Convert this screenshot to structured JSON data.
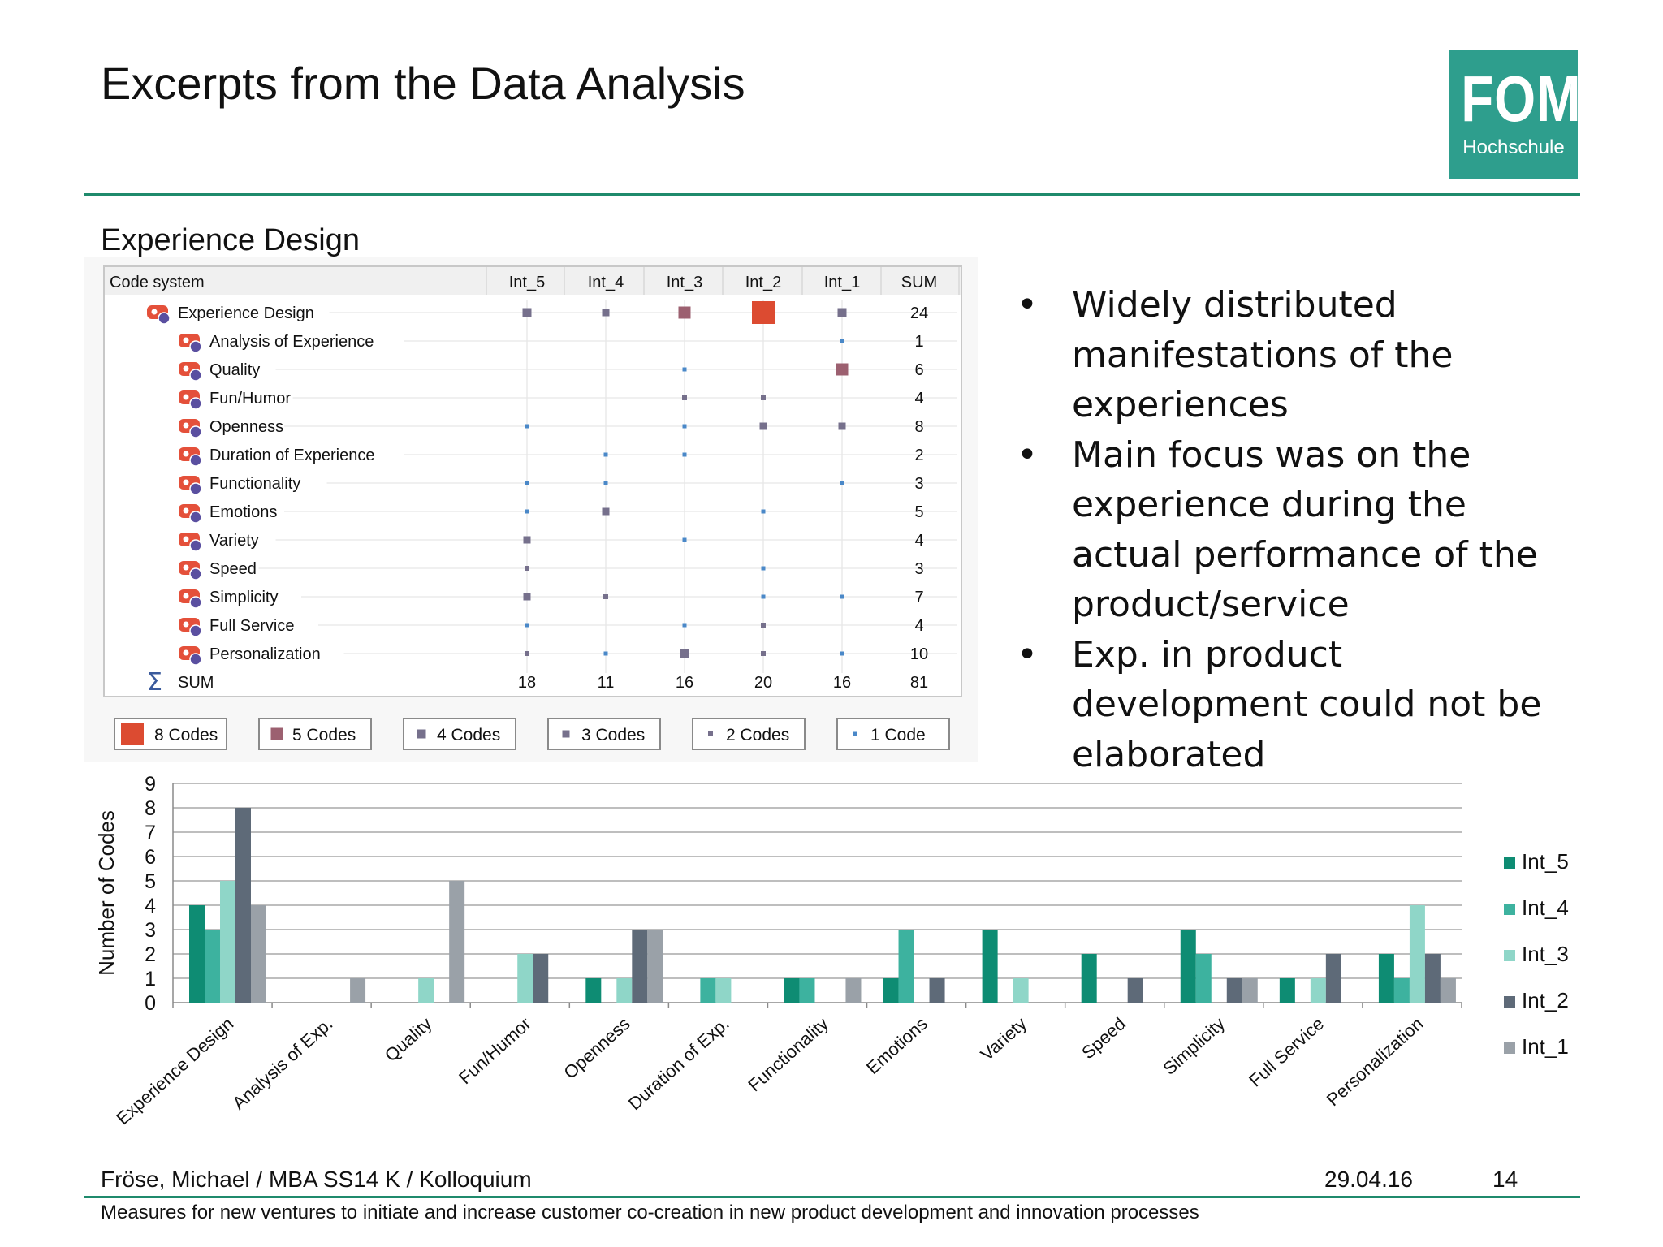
{
  "header": {
    "title": "Excerpts from the Data Analysis"
  },
  "logo": {
    "main": "FOM",
    "sub": "Hochschule"
  },
  "section": {
    "title": "Experience Design"
  },
  "code_table": {
    "header": "Code system",
    "columns": [
      "Int_5",
      "Int_4",
      "Int_3",
      "Int_2",
      "Int_1",
      "SUM"
    ],
    "rows": [
      {
        "label": "Experience Design",
        "level": 0,
        "values": [
          4,
          3,
          5,
          8,
          4
        ],
        "sum": "24"
      },
      {
        "label": "Analysis of Experience",
        "level": 1,
        "values": [
          0,
          0,
          0,
          0,
          1
        ],
        "sum": "1"
      },
      {
        "label": "Quality",
        "level": 1,
        "values": [
          0,
          0,
          1,
          0,
          5
        ],
        "sum": "6"
      },
      {
        "label": "Fun/Humor",
        "level": 1,
        "values": [
          0,
          0,
          2,
          2,
          0
        ],
        "sum": "4"
      },
      {
        "label": "Openness",
        "level": 1,
        "values": [
          1,
          0,
          1,
          3,
          3
        ],
        "sum": "8"
      },
      {
        "label": "Duration of Experience",
        "level": 1,
        "values": [
          0,
          1,
          1,
          0,
          0
        ],
        "sum": "2"
      },
      {
        "label": "Functionality",
        "level": 1,
        "values": [
          1,
          1,
          0,
          0,
          1
        ],
        "sum": "3"
      },
      {
        "label": "Emotions",
        "level": 1,
        "values": [
          1,
          3,
          0,
          1,
          0
        ],
        "sum": "5"
      },
      {
        "label": "Variety",
        "level": 1,
        "values": [
          3,
          0,
          1,
          0,
          0
        ],
        "sum": "4"
      },
      {
        "label": "Speed",
        "level": 1,
        "values": [
          2,
          0,
          0,
          1,
          0
        ],
        "sum": "3"
      },
      {
        "label": "Simplicity",
        "level": 1,
        "values": [
          3,
          2,
          0,
          1,
          1
        ],
        "sum": "7"
      },
      {
        "label": "Full Service",
        "level": 1,
        "values": [
          1,
          0,
          1,
          2,
          0
        ],
        "sum": "4"
      },
      {
        "label": "Personalization",
        "level": 1,
        "values": [
          2,
          1,
          4,
          2,
          1
        ],
        "sum": "10"
      }
    ],
    "sum_row": {
      "label": "SUM",
      "values": [
        "18",
        "11",
        "16",
        "20",
        "16"
      ],
      "total": "81"
    },
    "legend": [
      {
        "label": "8 Codes",
        "count": 8
      },
      {
        "label": "5 Codes",
        "count": 5
      },
      {
        "label": "4 Codes",
        "count": 4
      },
      {
        "label": "3 Codes",
        "count": 3
      },
      {
        "label": "2 Codes",
        "count": 2
      },
      {
        "label": "1 Code",
        "count": 1
      }
    ],
    "colors": {
      "big": "#dc4b31",
      "mauve": "#9c6070",
      "slate": "#76708c",
      "blue": "#4a88c8",
      "icon_red": "#e4503a",
      "icon_purple": "#5a4fa0"
    }
  },
  "bullets": [
    "Widely distributed manifestations of the experiences",
    "Main focus was on the experience during the actual performance of the product/service",
    "Exp. in product development could not be elaborated"
  ],
  "chart_data": {
    "type": "bar",
    "ylabel": "Number of Codes",
    "xlabel": "",
    "ylim": [
      0,
      9
    ],
    "yticks": [
      "0",
      "1",
      "2",
      "3",
      "4",
      "5",
      "6",
      "7",
      "8",
      "9"
    ],
    "categories": [
      "Experience Design",
      "Analysis of Exp.",
      "Quality",
      "Fun/Humor",
      "Openness",
      "Duration of Exp.",
      "Functionality",
      "Emotions",
      "Variety",
      "Speed",
      "Simplicity",
      "Full Service",
      "Personalization"
    ],
    "series": [
      {
        "name": "Int_5",
        "color": "#0e8c73",
        "values": [
          4,
          0,
          0,
          0,
          1,
          0,
          1,
          1,
          3,
          2,
          3,
          1,
          2
        ]
      },
      {
        "name": "Int_4",
        "color": "#3db29f",
        "values": [
          3,
          0,
          0,
          0,
          0,
          1,
          1,
          3,
          0,
          0,
          2,
          0,
          1
        ]
      },
      {
        "name": "Int_3",
        "color": "#8fd6c8",
        "values": [
          5,
          0,
          1,
          2,
          1,
          1,
          0,
          0,
          1,
          0,
          0,
          1,
          4
        ]
      },
      {
        "name": "Int_2",
        "color": "#5e6a78",
        "values": [
          8,
          0,
          0,
          2,
          3,
          0,
          0,
          1,
          0,
          1,
          1,
          2,
          2
        ]
      },
      {
        "name": "Int_1",
        "color": "#9aa1a8",
        "values": [
          4,
          1,
          5,
          0,
          3,
          0,
          1,
          0,
          0,
          0,
          1,
          0,
          1
        ]
      }
    ],
    "grid": true,
    "legend_position": "right"
  },
  "footer": {
    "author": "Fröse, Michael / MBA SS14 K / Kolloquium",
    "date": "29.04.16",
    "page": "14",
    "subtitle": "Measures for new ventures to initiate and increase customer co-creation in new product development and innovation processes"
  }
}
